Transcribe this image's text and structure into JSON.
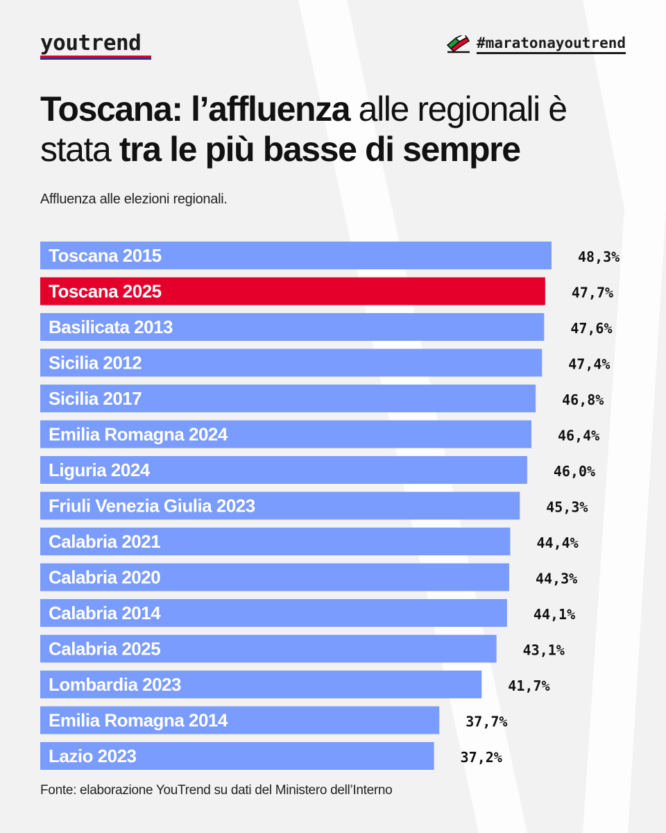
{
  "brand": {
    "logo_text": "youtrend",
    "hashtag": "#maratonayoutrend"
  },
  "colors": {
    "bar": "#7b9cff",
    "highlight": "#e4002b",
    "background": "#f2f2f2",
    "text": "#111111"
  },
  "title": {
    "part1_bold": "Toscana: l’affluenza",
    "part2": " alle regionali è stata ",
    "part3_bold": "tra le più basse di sempre"
  },
  "subtitle": "Affluenza alle elezioni regionali.",
  "source": "Fonte: elaborazione YouTrend su dati del Ministero dell’Interno",
  "chart_data": {
    "type": "bar",
    "orientation": "horizontal",
    "title": "Toscana: l’affluenza alle regionali è stata tra le più basse di sempre",
    "subtitle": "Affluenza alle elezioni regionali.",
    "unit": "%",
    "highlight_index": 1,
    "categories": [
      "Toscana 2015",
      "Toscana 2025",
      "Basilicata 2013",
      "Sicilia 2012",
      "Sicilia 2017",
      "Emilia Romagna 2024",
      "Liguria 2024",
      "Friuli Venezia Giulia 2023",
      "Calabria 2021",
      "Calabria 2020",
      "Calabria 2014",
      "Calabria 2025",
      "Lombardia 2023",
      "Emilia Romagna 2014",
      "Lazio 2023"
    ],
    "values": [
      48.3,
      47.7,
      47.6,
      47.4,
      46.8,
      46.4,
      46.0,
      45.3,
      44.4,
      44.3,
      44.1,
      43.1,
      41.7,
      37.7,
      37.2
    ],
    "value_labels": [
      "48,3%",
      "47,7%",
      "47,6%",
      "47,4%",
      "46,8%",
      "46,4%",
      "46,0%",
      "45,3%",
      "44,4%",
      "44,3%",
      "44,1%",
      "43,1%",
      "41,7%",
      "37,7%",
      "37,2%"
    ]
  }
}
